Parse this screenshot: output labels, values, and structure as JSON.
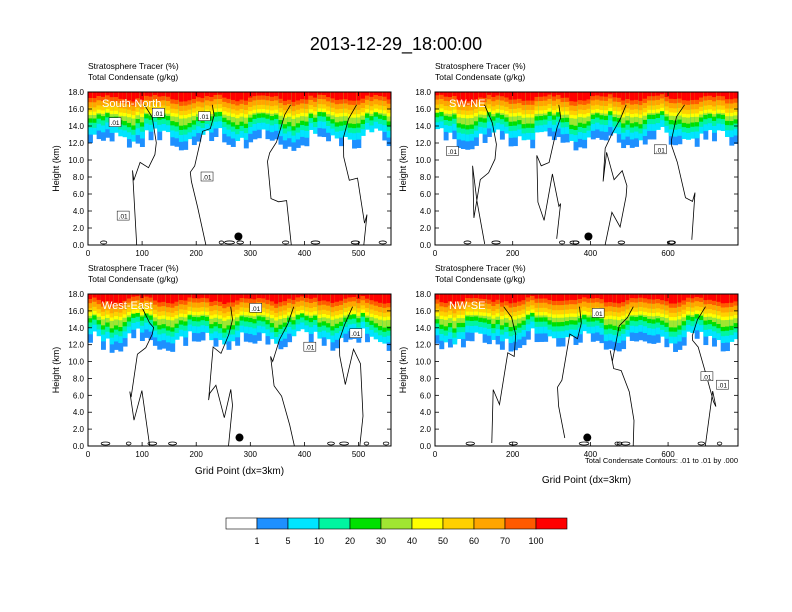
{
  "figure": {
    "title": "2013-12-29_18:00:00",
    "footnote": "Total Condensate Contours: .01 to .01 by .000"
  },
  "colorbar": {
    "colors": [
      "#ffffff",
      "#1e90ff",
      "#00e5ff",
      "#00f5a0",
      "#00e000",
      "#a0e632",
      "#ffff00",
      "#ffd000",
      "#ffa500",
      "#ff5a00",
      "#ff0000"
    ],
    "labels": [
      "1",
      "5",
      "10",
      "20",
      "30",
      "40",
      "50",
      "60",
      "70",
      "100"
    ]
  },
  "chart_data": [
    {
      "type": "heatmap",
      "panel_label": "South-North",
      "subtitle_1": "Stratosphere Tracer   (%)",
      "subtitle_2": "Total Condensate   (g/kg)",
      "ylabel": "Height (km)",
      "xlabel": "",
      "xlim": [
        0,
        560
      ],
      "ylim": [
        0,
        18
      ],
      "xticks": [
        0,
        100,
        200,
        300,
        400,
        500
      ],
      "yticks": [
        0.0,
        2.0,
        4.0,
        6.0,
        8.0,
        10.0,
        12.0,
        14.0,
        16.0,
        18.0
      ],
      "ytick_labels": [
        "0.0",
        "2.0",
        "4.0",
        "6.0",
        "8.0",
        "10.0",
        "12.0",
        "14.0",
        "16.0",
        "18.0"
      ],
      "contour_labels": [
        {
          "text": ".01",
          "x": 50,
          "y": 14.4
        },
        {
          "text": ".01",
          "x": 130,
          "y": 15.5
        },
        {
          "text": ".01",
          "x": 215,
          "y": 15.1
        },
        {
          "text": ".01",
          "x": 220,
          "y": 8.0
        },
        {
          "text": ".01",
          "x": 65,
          "y": 3.4
        }
      ],
      "marker": {
        "x": 278,
        "y": 1.0
      }
    },
    {
      "type": "heatmap",
      "panel_label": "SW-NE",
      "subtitle_1": "Stratosphere Tracer   (%)",
      "subtitle_2": "Total Condensate   (g/kg)",
      "ylabel": "Height (km)",
      "xlabel": "",
      "xlim": [
        0,
        780
      ],
      "ylim": [
        0,
        18
      ],
      "xticks": [
        0,
        200,
        400,
        600
      ],
      "yticks": [
        0.0,
        2.0,
        4.0,
        6.0,
        8.0,
        10.0,
        12.0,
        14.0,
        16.0,
        18.0
      ],
      "ytick_labels": [
        "0.0",
        "2.0",
        "4.0",
        "6.0",
        "8.0",
        "10.0",
        "12.0",
        "14.0",
        "16.0",
        "18.0"
      ],
      "contour_labels": [
        {
          "text": ".01",
          "x": 45,
          "y": 11.0
        },
        {
          "text": ".01",
          "x": 580,
          "y": 11.2
        }
      ],
      "marker": {
        "x": 395,
        "y": 1.0
      }
    },
    {
      "type": "heatmap",
      "panel_label": "West-East",
      "subtitle_1": "Stratosphere Tracer   (%)",
      "subtitle_2": "Total Condensate   (g/kg)",
      "ylabel": "Height (km)",
      "xlabel": "Grid Point (dx=3km)",
      "xlim": [
        0,
        560
      ],
      "ylim": [
        0,
        18
      ],
      "xticks": [
        0,
        100,
        200,
        300,
        400,
        500
      ],
      "yticks": [
        0.0,
        2.0,
        4.0,
        6.0,
        8.0,
        10.0,
        12.0,
        14.0,
        16.0,
        18.0
      ],
      "ytick_labels": [
        "0.0",
        "2.0",
        "4.0",
        "6.0",
        "8.0",
        "10.0",
        "12.0",
        "14.0",
        "16.0",
        "18.0"
      ],
      "contour_labels": [
        {
          "text": ".01",
          "x": 310,
          "y": 16.3
        },
        {
          "text": ".01",
          "x": 410,
          "y": 11.7
        },
        {
          "text": ".01",
          "x": 495,
          "y": 13.3
        }
      ],
      "marker": {
        "x": 280,
        "y": 1.0
      }
    },
    {
      "type": "heatmap",
      "panel_label": "NW-SE",
      "subtitle_1": "Stratosphere Tracer   (%)",
      "subtitle_2": "Total Condensate   (g/kg)",
      "ylabel": "Height (km)",
      "xlabel": "Grid Point (dx=3km)",
      "xlim": [
        0,
        780
      ],
      "ylim": [
        0,
        18
      ],
      "xticks": [
        0,
        200,
        400,
        600
      ],
      "yticks": [
        0.0,
        2.0,
        4.0,
        6.0,
        8.0,
        10.0,
        12.0,
        14.0,
        16.0,
        18.0
      ],
      "ytick_labels": [
        "0.0",
        "2.0",
        "4.0",
        "6.0",
        "8.0",
        "10.0",
        "12.0",
        "14.0",
        "16.0",
        "18.0"
      ],
      "contour_labels": [
        {
          "text": ".01",
          "x": 420,
          "y": 15.7
        },
        {
          "text": ".01",
          "x": 700,
          "y": 8.2
        },
        {
          "text": ".01",
          "x": 740,
          "y": 7.2
        }
      ],
      "marker": {
        "x": 392,
        "y": 1.0
      }
    }
  ]
}
